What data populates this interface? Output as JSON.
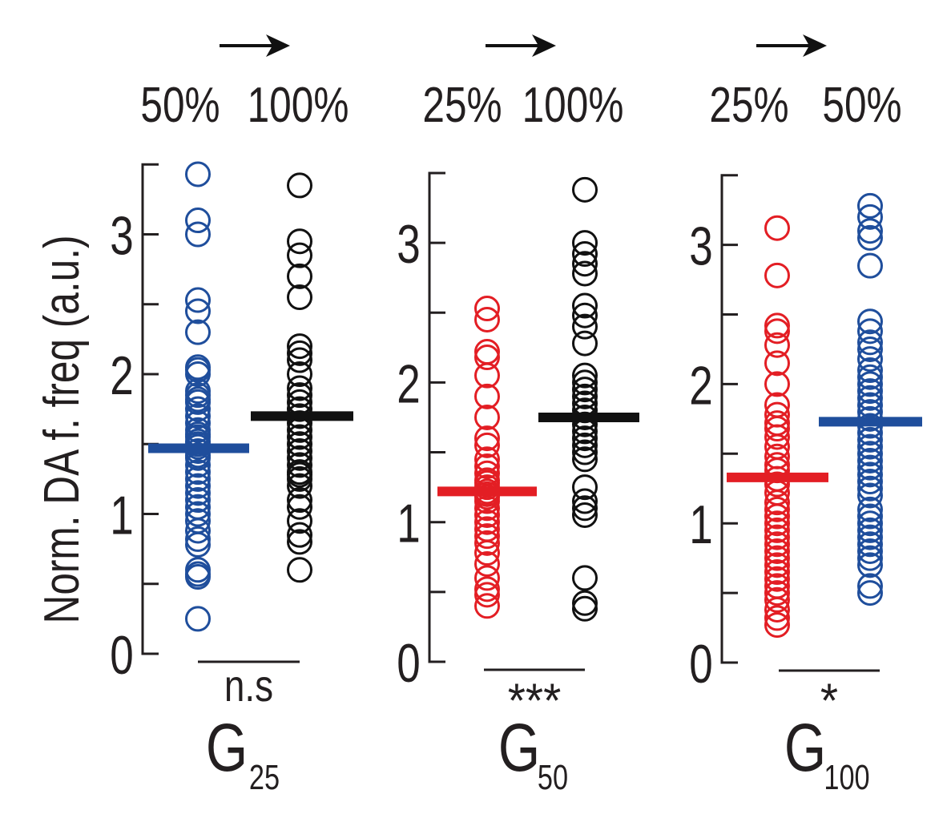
{
  "chart_data": {
    "type": "scatter",
    "ylabel": "Norm. DA f. freq (a.u.)",
    "ylim": [
      0,
      3.5
    ],
    "yticks": [
      "0",
      "1",
      "2",
      "3"
    ],
    "colors": {
      "red": "#e31e24",
      "blue": "#1f4e9c",
      "black": "#111111"
    },
    "panels": [
      {
        "group": "G",
        "group_sub": "25",
        "significance": "n.s",
        "direction_arrow": "→",
        "left_label": "50%",
        "right_label": "100%",
        "series": [
          {
            "color": "blue",
            "values": [
              3.43,
              3.1,
              3.0,
              2.53,
              2.45,
              2.3,
              2.05,
              2.03,
              2.0,
              1.88,
              1.85,
              1.82,
              1.8,
              1.75,
              1.7,
              1.65,
              1.6,
              1.57,
              1.55,
              1.52,
              1.5,
              1.48,
              1.45,
              1.42,
              1.4,
              1.35,
              1.3,
              1.25,
              1.2,
              1.15,
              1.1,
              1.05,
              1.0,
              0.95,
              0.88,
              0.82,
              0.78,
              0.6,
              0.57,
              0.55,
              0.25
            ],
            "mean": 1.47
          },
          {
            "color": "black",
            "values": [
              3.35,
              2.95,
              2.85,
              2.7,
              2.55,
              2.2,
              2.15,
              2.1,
              2.0,
              1.9,
              1.85,
              1.8,
              1.75,
              1.7,
              1.65,
              1.6,
              1.55,
              1.5,
              1.45,
              1.4,
              1.35,
              1.3,
              1.28,
              1.25,
              1.2,
              1.1,
              1.05,
              0.95,
              0.85,
              0.8,
              0.6
            ],
            "mean": 1.7
          }
        ]
      },
      {
        "group": "G",
        "group_sub": "50",
        "significance": "***",
        "direction_arrow": "→",
        "left_label": "25%",
        "right_label": "100%",
        "series": [
          {
            "color": "red",
            "values": [
              2.53,
              2.45,
              2.22,
              2.18,
              2.05,
              1.9,
              1.75,
              1.6,
              1.55,
              1.45,
              1.4,
              1.35,
              1.3,
              1.28,
              1.25,
              1.22,
              1.2,
              1.18,
              1.15,
              1.1,
              1.05,
              1.0,
              0.95,
              0.9,
              0.85,
              0.78,
              0.7,
              0.6,
              0.52,
              0.48,
              0.4
            ],
            "mean": 1.22
          },
          {
            "color": "black",
            "values": [
              3.38,
              3.0,
              2.92,
              2.85,
              2.78,
              2.55,
              2.48,
              2.4,
              2.28,
              2.05,
              2.0,
              1.95,
              1.9,
              1.85,
              1.8,
              1.75,
              1.7,
              1.65,
              1.6,
              1.55,
              1.5,
              1.45,
              1.25,
              1.15,
              1.1,
              1.05,
              0.6,
              0.42,
              0.38
            ],
            "mean": 1.75
          }
        ]
      },
      {
        "group": "G",
        "group_sub": "100",
        "significance": "*",
        "direction_arrow": "→",
        "left_label": "25%",
        "right_label": "50%",
        "series": [
          {
            "color": "red",
            "values": [
              3.12,
              2.78,
              2.42,
              2.38,
              2.28,
              2.15,
              2.0,
              1.85,
              1.78,
              1.72,
              1.68,
              1.62,
              1.55,
              1.48,
              1.42,
              1.38,
              1.32,
              1.28,
              1.22,
              1.15,
              1.1,
              1.05,
              1.0,
              0.95,
              0.9,
              0.85,
              0.8,
              0.75,
              0.7,
              0.65,
              0.6,
              0.55,
              0.5,
              0.45,
              0.38,
              0.32,
              0.27
            ],
            "mean": 1.33
          },
          {
            "color": "blue",
            "values": [
              3.28,
              3.2,
              3.1,
              3.05,
              2.85,
              2.45,
              2.38,
              2.3,
              2.25,
              2.18,
              2.1,
              2.05,
              2.0,
              1.95,
              1.9,
              1.85,
              1.8,
              1.75,
              1.7,
              1.65,
              1.6,
              1.55,
              1.5,
              1.45,
              1.4,
              1.35,
              1.3,
              1.25,
              1.2,
              1.1,
              1.05,
              1.0,
              0.95,
              0.9,
              0.85,
              0.8,
              0.75,
              0.7,
              0.55,
              0.5
            ],
            "mean": 1.73
          }
        ]
      }
    ]
  }
}
